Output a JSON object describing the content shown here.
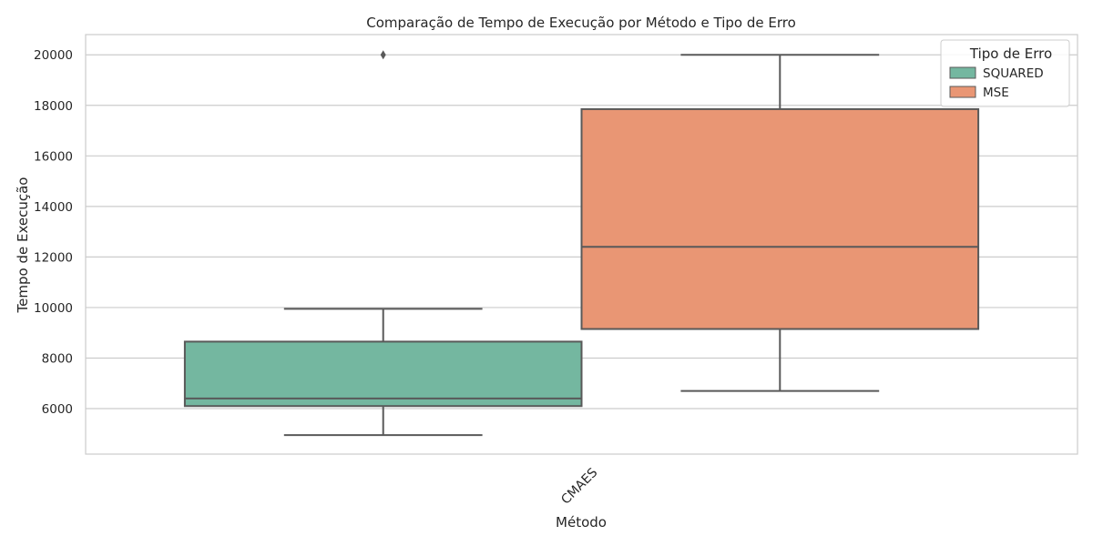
{
  "chart_data": {
    "type": "box",
    "title": "Comparação de Tempo de Execução por Método e Tipo de Erro",
    "xlabel": "Método",
    "ylabel": "Tempo de Execução",
    "categories": [
      "CMAES"
    ],
    "ylim": [
      4200,
      20800
    ],
    "yticks": [
      6000,
      8000,
      10000,
      12000,
      14000,
      16000,
      18000,
      20000
    ],
    "grid": true,
    "legend": {
      "title": "Tipo de Erro",
      "position": "top-right"
    },
    "series": [
      {
        "name": "SQUARED",
        "color": "#74b7a0",
        "whisker_low": 4950,
        "q1": 6100,
        "median": 6400,
        "q3": 8650,
        "whisker_high": 9950,
        "outliers": [
          20000
        ]
      },
      {
        "name": "MSE",
        "color": "#e99674",
        "whisker_low": 6700,
        "q1": 9150,
        "median": 12400,
        "q3": 17850,
        "whisker_high": 20000,
        "outliers": []
      }
    ]
  }
}
